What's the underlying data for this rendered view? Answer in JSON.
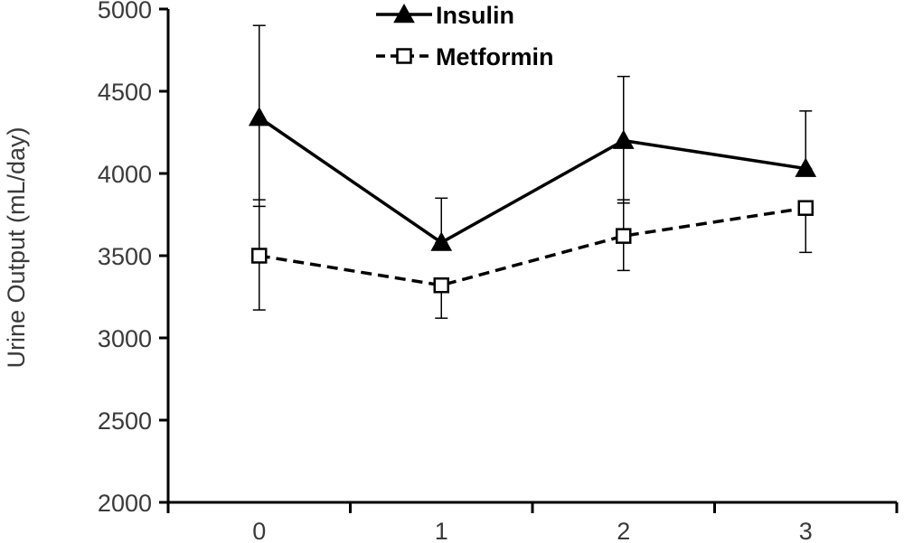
{
  "chart_data": {
    "type": "line",
    "title": "",
    "xlabel": "",
    "ylabel": "Urine Output (mL/day)",
    "categories": [
      "0",
      "1",
      "2",
      "3"
    ],
    "ylim": [
      2000,
      5000
    ],
    "yticks": [
      "2000",
      "2500",
      "3000",
      "3500",
      "4000",
      "4500",
      "5000"
    ],
    "grid": false,
    "legend_position": "top-center",
    "series": [
      {
        "name": "Insulin",
        "values": [
          4340,
          3580,
          4200,
          4030
        ],
        "error_upper": [
          4900,
          3850,
          4590,
          4380
        ],
        "error_lower": [
          3800,
          3580,
          3820,
          4030
        ],
        "marker": "filled-triangle",
        "line_style": "solid",
        "color": "#000000"
      },
      {
        "name": "Metformin",
        "values": [
          3500,
          3320,
          3620,
          3790
        ],
        "error_upper": [
          3840,
          3320,
          3840,
          3790
        ],
        "error_lower": [
          3170,
          3120,
          3410,
          3520
        ],
        "marker": "open-square",
        "line_style": "dashed",
        "color": "#000000"
      }
    ]
  }
}
